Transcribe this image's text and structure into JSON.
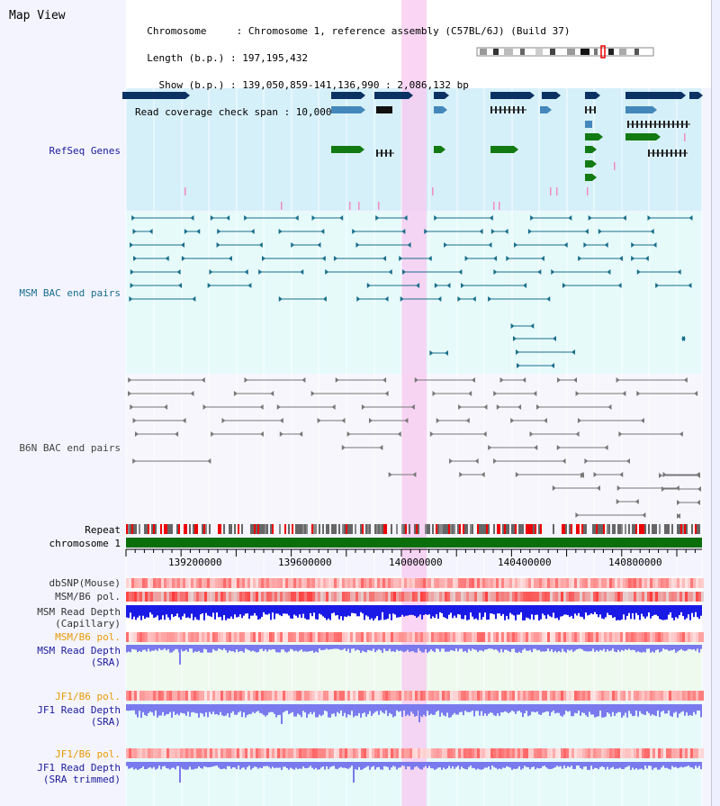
{
  "page": {
    "title": "Map View"
  },
  "info": {
    "lines": [
      "  Chromosome     : Chromosome 1, reference assembly (C57BL/6J) (Build 37)",
      "  Length (b.p.) : 197,195,432",
      "    Show (b.p.) : 139,050,859-141,136,990 : 2,086,132 bp",
      "Read coverage check span : 10,000"
    ]
  },
  "tracks": {
    "refseq": "RefSeq Genes",
    "msm_bac": "MSM BAC end pairs",
    "b6n_bac": "B6N BAC end pairs",
    "repeat": "Repeat",
    "chromosome": "chromosome 1",
    "dbsnp": "dbSNP(Mouse)",
    "msm_b6_pol": "MSM/B6 pol.",
    "msm_read_cap": "MSM Read Depth\n(Capillary)",
    "msm_b6_pol2": "MSM/B6 pol.",
    "msm_read_sra": "MSM Read Depth\n(SRA)",
    "jf1_b6_pol": "JF1/B6 pol.",
    "jf1_read_sra": "JF1 Read Depth\n(SRA)",
    "jf1_b6_pol2": "JF1/B6 pol.",
    "jf1_read_trim": "JF1 Read Depth\n(SRA trimmed)"
  },
  "axis": {
    "ticks": [
      "139200000",
      "139600000",
      "140000000",
      "140400000",
      "140800000"
    ]
  },
  "colors": {
    "refseq_bg": "#d6f0fa",
    "msm_bg": "#e6fafa",
    "b6n_bg": "#f4f4fa",
    "highlight": "#f8c8f0",
    "gene_dark": "#0c3264",
    "gene_mid": "#4488bb",
    "gene_green": "#127a12",
    "msm_line": "#1a6e8c",
    "b6n_line": "#777777",
    "chrom_bar": "#0a6e0a",
    "depth_blue": "#1a1ae6",
    "depth_light": "#7a7aee",
    "label_blue": "#1a1a9a",
    "label_orange": "#e69a00",
    "label_teal": "#1a6e8c"
  }
}
